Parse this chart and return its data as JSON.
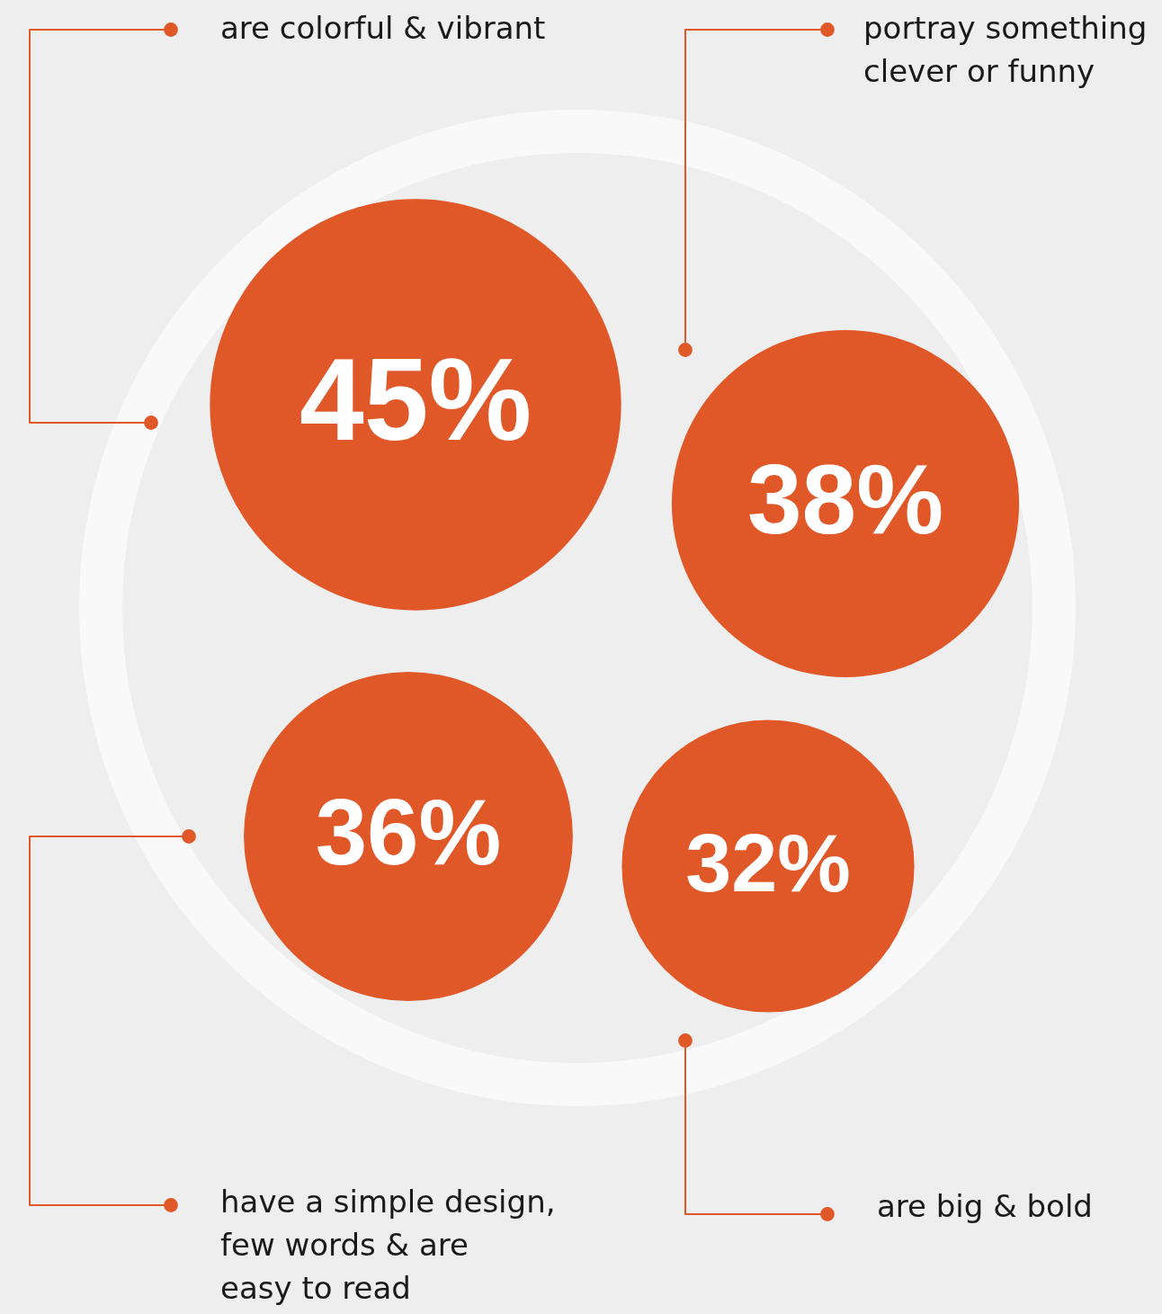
{
  "chart_data": {
    "type": "other",
    "categories": [
      "are colorful & vibrant",
      "portray something\nclever or funny",
      "have a simple design,\nfew words & are\neasy to read",
      "are big & bold"
    ],
    "values": [
      45,
      38,
      36,
      32
    ],
    "value_labels": [
      "45%",
      "38%",
      "36%",
      "32%"
    ],
    "colors": [
      "#e05728",
      "#e05728",
      "#e05728",
      "#e05728"
    ]
  }
}
